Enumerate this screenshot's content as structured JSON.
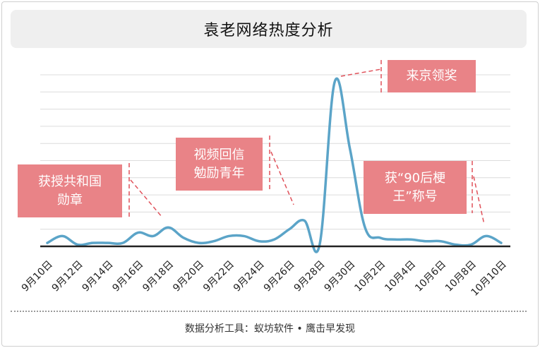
{
  "title": "袁老网络热度分析",
  "footer": "数据分析工具：蚁坊软件 • 鹰击早发现",
  "colors": {
    "line": "#5ba4c8",
    "grid": "#dcdcdc",
    "baseline": "#222222",
    "annotation": "#e98387",
    "leader": "#e0515a"
  },
  "annotations": [
    {
      "text": "获授共和国\n勋章",
      "date": "9月17日"
    },
    {
      "text": "视频回信\n勉励青年",
      "date": "9月26日"
    },
    {
      "text": "来京领奖",
      "date": "9月29日"
    },
    {
      "text": "获“90后梗\n王”称号",
      "date": "10月9日"
    }
  ],
  "chart_data": {
    "type": "line",
    "title": "袁老网络热度分析",
    "xlabel": "",
    "ylabel": "",
    "x": [
      "9月10日",
      "9月11日",
      "9月12日",
      "9月13日",
      "9月14日",
      "9月15日",
      "9月16日",
      "9月17日",
      "9月18日",
      "9月19日",
      "9月20日",
      "9月21日",
      "9月22日",
      "9月23日",
      "9月24日",
      "9月25日",
      "9月26日",
      "9月27日",
      "9月28日",
      "9月29日",
      "9月30日",
      "10月1日",
      "10月2日",
      "10月3日",
      "10月4日",
      "10月5日",
      "10月6日",
      "10月7日",
      "10月8日",
      "10月9日",
      "10月10日"
    ],
    "tick_labels": [
      "9月10日",
      "9月12日",
      "9月14日",
      "9月16日",
      "9月18日",
      "9月20日",
      "9月22日",
      "9月24日",
      "9月26日",
      "9月28日",
      "9月30日",
      "10月2日",
      "10月4日",
      "10月6日",
      "10月8日",
      "10月10日"
    ],
    "series": [
      {
        "values": [
          2,
          6,
          1,
          2,
          2,
          2,
          8,
          6,
          11,
          5,
          2,
          3,
          6,
          6,
          3,
          4,
          10,
          15,
          1,
          96,
          57,
          11,
          5,
          4,
          4,
          3,
          3,
          1,
          1,
          6,
          2
        ]
      }
    ],
    "ylim": [
      0,
      100
    ],
    "grid": true,
    "y_grid_lines": 10,
    "legend": "none"
  }
}
